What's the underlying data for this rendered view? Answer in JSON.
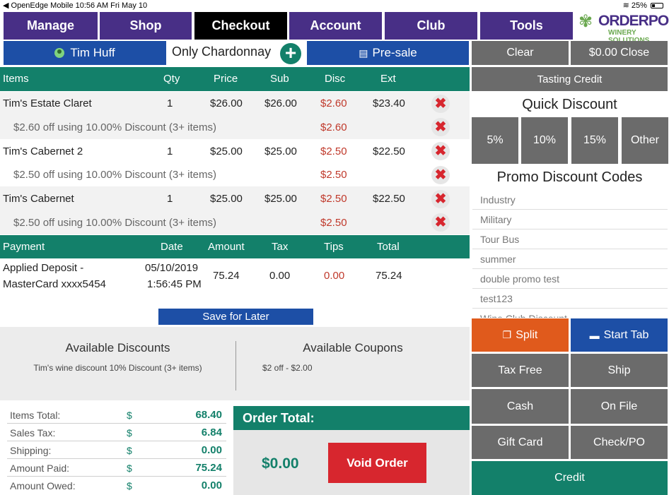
{
  "status_bar": {
    "left": "◀ OpenEdge Mobile  10:56 AM  Fri May 10",
    "battery": "25%"
  },
  "nav": {
    "items": [
      "Manage",
      "Shop",
      "Checkout",
      "Account",
      "Club",
      "Tools"
    ],
    "active": "Checkout"
  },
  "logo": {
    "brand": "ORDERPORT",
    "sub": "WINERY SOLUTIONS"
  },
  "customer": {
    "name": "Tim Huff",
    "subtitle": "Only Chardonnay",
    "presale_label": "Pre-sale"
  },
  "right_top": {
    "clear": "Clear",
    "close": "$0.00 Close",
    "tasting_credit": "Tasting Credit",
    "quick_discount_title": "Quick Discount",
    "quick_discounts": [
      "5%",
      "10%",
      "15%",
      "Other"
    ],
    "promo_title": "Promo Discount Codes",
    "promo_codes": [
      "Industry",
      "Military",
      "Tour Bus",
      "summer",
      "double promo test",
      "test123",
      "Wine Club Discount"
    ]
  },
  "items_table": {
    "headers": {
      "items": "Items",
      "qty": "Qty",
      "price": "Price",
      "sub": "Sub",
      "disc": "Disc",
      "ext": "Ext"
    },
    "rows": [
      {
        "name": "Tim's Estate Claret",
        "qty": "1",
        "price": "$26.00",
        "sub": "$26.00",
        "disc": "$2.60",
        "ext": "$23.40",
        "note": "$2.60 off using 10.00% Discount (3+ items)",
        "note_disc": "$2.60"
      },
      {
        "name": "Tim's Cabernet 2",
        "qty": "1",
        "price": "$25.00",
        "sub": "$25.00",
        "disc": "$2.50",
        "ext": "$22.50",
        "note": "$2.50 off using 10.00% Discount (3+ items)",
        "note_disc": "$2.50"
      },
      {
        "name": "Tim's Cabernet",
        "qty": "1",
        "price": "$25.00",
        "sub": "$25.00",
        "disc": "$2.50",
        "ext": "$22.50",
        "note": "$2.50 off using 10.00% Discount (3+ items)",
        "note_disc": "$2.50"
      }
    ],
    "remove_symbol": "✖"
  },
  "payment_table": {
    "headers": {
      "payment": "Payment",
      "date": "Date",
      "amount": "Amount",
      "tax": "Tax",
      "tips": "Tips",
      "total": "Total"
    },
    "row": {
      "payment_line1": "Applied Deposit -",
      "payment_line2": "MasterCard xxxx5454",
      "date_line1": "05/10/2019",
      "date_line2": "1:56:45 PM",
      "amount": "75.24",
      "tax": "0.00",
      "tips": "0.00",
      "total": "75.24"
    }
  },
  "save_for_later": "Save for Later",
  "discounts": {
    "available_discounts_title": "Available Discounts",
    "available_discounts_item": "Tim's wine discount 10% Discount (3+ items)",
    "available_coupons_title": "Available Coupons",
    "available_coupons_item": "$2 off - $2.00"
  },
  "payment_buttons": {
    "split": "Split",
    "start_tab": "Start Tab",
    "tax_free": "Tax Free",
    "ship": "Ship",
    "cash": "Cash",
    "on_file": "On File",
    "gift_card": "Gift Card",
    "check_po": "Check/PO",
    "credit": "Credit"
  },
  "summary": {
    "currency": "$",
    "rows": [
      {
        "label": "Items Total:",
        "value": "68.40"
      },
      {
        "label": "Sales Tax:",
        "value": "6.84"
      },
      {
        "label": "Shipping:",
        "value": "0.00"
      },
      {
        "label": "Amount Paid:",
        "value": "75.24"
      },
      {
        "label": "Amount Owed:",
        "value": "0.00"
      }
    ]
  },
  "order_total": {
    "title": "Order Total:",
    "value": "$0.00",
    "void_label": "Void Order"
  },
  "colors": {
    "nav_purple": "#482f86",
    "teal": "#13806a",
    "blue": "#1d4fa6",
    "grey": "#6b6b6b",
    "orange": "#e05a1c",
    "red": "#d7262e"
  }
}
